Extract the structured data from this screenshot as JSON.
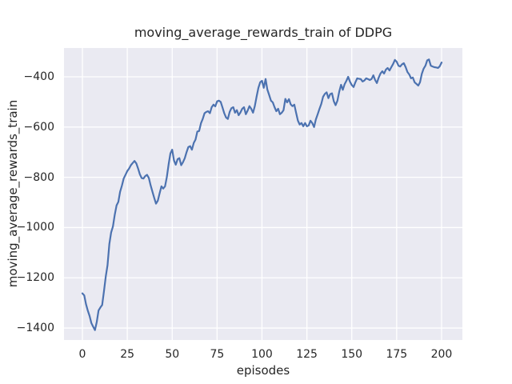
{
  "chart_data": {
    "type": "line",
    "title": "moving_average_rewards_train of DDPG",
    "xlabel": "episodes",
    "ylabel": "moving_average_rewards_train",
    "xlim": [
      -10.25,
      211.6
    ],
    "ylim": [
      -1447.5,
      -285.5
    ],
    "xticks": [
      0,
      25,
      50,
      75,
      100,
      125,
      150,
      175,
      200
    ],
    "yticks": [
      -400,
      -600,
      -800,
      -1000,
      -1200,
      -1400
    ],
    "grid": true,
    "legend": null,
    "plot_bg_color": "#eaeaf2",
    "grid_color": "#ffffff",
    "line_color": "#4c72b0",
    "text_color": "#262626",
    "series": [
      {
        "name": "moving_average_rewards_train",
        "points": [
          [
            0,
            -1262
          ],
          [
            1,
            -1270
          ],
          [
            2,
            -1305
          ],
          [
            3,
            -1330
          ],
          [
            4,
            -1352
          ],
          [
            5,
            -1380
          ],
          [
            6,
            -1395
          ],
          [
            7,
            -1408
          ],
          [
            8,
            -1375
          ],
          [
            9,
            -1330
          ],
          [
            10,
            -1318
          ],
          [
            11,
            -1308
          ],
          [
            12,
            -1255
          ],
          [
            13,
            -1195
          ],
          [
            14,
            -1150
          ],
          [
            15,
            -1065
          ],
          [
            16,
            -1020
          ],
          [
            17,
            -995
          ],
          [
            18,
            -950
          ],
          [
            19,
            -912
          ],
          [
            20,
            -898
          ],
          [
            21,
            -858
          ],
          [
            22,
            -833
          ],
          [
            23,
            -805
          ],
          [
            24,
            -790
          ],
          [
            25,
            -775
          ],
          [
            26,
            -765
          ],
          [
            27,
            -752
          ],
          [
            28,
            -743
          ],
          [
            29,
            -735
          ],
          [
            30,
            -745
          ],
          [
            31,
            -765
          ],
          [
            32,
            -788
          ],
          [
            33,
            -803
          ],
          [
            34,
            -805
          ],
          [
            35,
            -795
          ],
          [
            36,
            -790
          ],
          [
            37,
            -803
          ],
          [
            38,
            -832
          ],
          [
            39,
            -858
          ],
          [
            40,
            -882
          ],
          [
            41,
            -905
          ],
          [
            42,
            -893
          ],
          [
            43,
            -864
          ],
          [
            44,
            -836
          ],
          [
            45,
            -845
          ],
          [
            46,
            -836
          ],
          [
            47,
            -800
          ],
          [
            48,
            -748
          ],
          [
            49,
            -705
          ],
          [
            50,
            -690
          ],
          [
            51,
            -733
          ],
          [
            52,
            -750
          ],
          [
            53,
            -728
          ],
          [
            54,
            -724
          ],
          [
            55,
            -752
          ],
          [
            56,
            -740
          ],
          [
            57,
            -724
          ],
          [
            58,
            -700
          ],
          [
            59,
            -680
          ],
          [
            60,
            -676
          ],
          [
            61,
            -690
          ],
          [
            62,
            -663
          ],
          [
            63,
            -650
          ],
          [
            64,
            -618
          ],
          [
            65,
            -616
          ],
          [
            66,
            -585
          ],
          [
            67,
            -568
          ],
          [
            68,
            -545
          ],
          [
            69,
            -540
          ],
          [
            70,
            -537
          ],
          [
            71,
            -545
          ],
          [
            72,
            -521
          ],
          [
            73,
            -511
          ],
          [
            74,
            -518
          ],
          [
            75,
            -498
          ],
          [
            76,
            -495
          ],
          [
            77,
            -500
          ],
          [
            78,
            -522
          ],
          [
            79,
            -545
          ],
          [
            80,
            -562
          ],
          [
            81,
            -568
          ],
          [
            82,
            -540
          ],
          [
            83,
            -525
          ],
          [
            84,
            -521
          ],
          [
            85,
            -543
          ],
          [
            86,
            -533
          ],
          [
            87,
            -553
          ],
          [
            88,
            -542
          ],
          [
            89,
            -527
          ],
          [
            90,
            -521
          ],
          [
            91,
            -549
          ],
          [
            92,
            -535
          ],
          [
            93,
            -517
          ],
          [
            94,
            -527
          ],
          [
            95,
            -543
          ],
          [
            96,
            -517
          ],
          [
            97,
            -478
          ],
          [
            98,
            -444
          ],
          [
            99,
            -422
          ],
          [
            100,
            -416
          ],
          [
            101,
            -444
          ],
          [
            102,
            -409
          ],
          [
            103,
            -451
          ],
          [
            104,
            -473
          ],
          [
            105,
            -495
          ],
          [
            106,
            -502
          ],
          [
            107,
            -521
          ],
          [
            108,
            -537
          ],
          [
            109,
            -527
          ],
          [
            110,
            -549
          ],
          [
            111,
            -543
          ],
          [
            112,
            -533
          ],
          [
            113,
            -488
          ],
          [
            114,
            -502
          ],
          [
            115,
            -489
          ],
          [
            116,
            -510
          ],
          [
            117,
            -517
          ],
          [
            118,
            -511
          ],
          [
            119,
            -543
          ],
          [
            120,
            -575
          ],
          [
            121,
            -590
          ],
          [
            122,
            -584
          ],
          [
            123,
            -597
          ],
          [
            124,
            -584
          ],
          [
            125,
            -597
          ],
          [
            126,
            -594
          ],
          [
            127,
            -575
          ],
          [
            128,
            -584
          ],
          [
            129,
            -600
          ],
          [
            130,
            -570
          ],
          [
            131,
            -549
          ],
          [
            132,
            -528
          ],
          [
            133,
            -508
          ],
          [
            134,
            -480
          ],
          [
            135,
            -468
          ],
          [
            136,
            -462
          ],
          [
            137,
            -485
          ],
          [
            138,
            -469
          ],
          [
            139,
            -466
          ],
          [
            140,
            -498
          ],
          [
            141,
            -513
          ],
          [
            142,
            -495
          ],
          [
            143,
            -460
          ],
          [
            144,
            -432
          ],
          [
            145,
            -452
          ],
          [
            146,
            -430
          ],
          [
            147,
            -416
          ],
          [
            148,
            -400
          ],
          [
            149,
            -420
          ],
          [
            150,
            -433
          ],
          [
            151,
            -441
          ],
          [
            152,
            -422
          ],
          [
            153,
            -406
          ],
          [
            154,
            -408
          ],
          [
            155,
            -409
          ],
          [
            156,
            -419
          ],
          [
            157,
            -415
          ],
          [
            158,
            -406
          ],
          [
            159,
            -409
          ],
          [
            160,
            -413
          ],
          [
            161,
            -409
          ],
          [
            162,
            -394
          ],
          [
            163,
            -413
          ],
          [
            164,
            -425
          ],
          [
            165,
            -403
          ],
          [
            166,
            -387
          ],
          [
            167,
            -378
          ],
          [
            168,
            -387
          ],
          [
            169,
            -371
          ],
          [
            170,
            -365
          ],
          [
            171,
            -375
          ],
          [
            172,
            -362
          ],
          [
            173,
            -349
          ],
          [
            174,
            -333
          ],
          [
            175,
            -340
          ],
          [
            176,
            -356
          ],
          [
            177,
            -359
          ],
          [
            178,
            -350
          ],
          [
            179,
            -346
          ],
          [
            180,
            -362
          ],
          [
            181,
            -381
          ],
          [
            182,
            -391
          ],
          [
            183,
            -406
          ],
          [
            184,
            -403
          ],
          [
            185,
            -422
          ],
          [
            186,
            -428
          ],
          [
            187,
            -435
          ],
          [
            188,
            -422
          ],
          [
            189,
            -388
          ],
          [
            190,
            -368
          ],
          [
            191,
            -356
          ],
          [
            192,
            -335
          ],
          [
            193,
            -331
          ],
          [
            194,
            -356
          ],
          [
            195,
            -359
          ],
          [
            196,
            -362
          ],
          [
            197,
            -363
          ],
          [
            198,
            -365
          ],
          [
            199,
            -358
          ],
          [
            200,
            -343
          ]
        ]
      }
    ]
  }
}
